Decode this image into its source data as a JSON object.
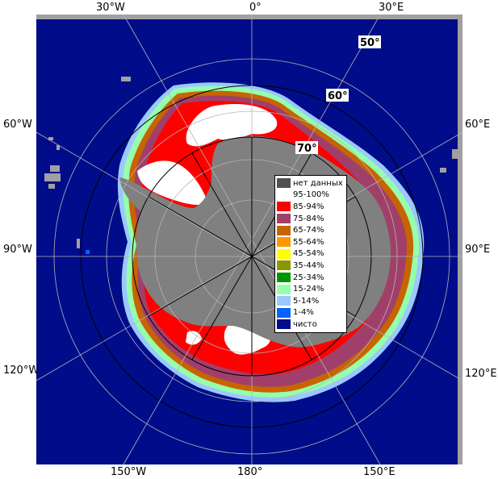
{
  "map": {
    "colors": {
      "ocean": "#000c8a",
      "land": "#808080",
      "frame_gray": "#a0a0a0",
      "grid": "#b4b4b4",
      "ice_95_100": "#ffffff",
      "ice_85_94": "#ff0000",
      "ice_75_84": "#a0406a",
      "ice_65_74": "#c86400",
      "ice_55_64": "#ff9600",
      "ice_45_54": "#ffff00",
      "ice_35_44": "#8c9600",
      "ice_25_34": "#009600",
      "ice_15_24": "#96ffaa",
      "ice_5_14": "#9ac8ff",
      "ice_1_4": "#0064ff"
    },
    "longitude_labels": {
      "lon_30w": "30°W",
      "lon_0": "0°",
      "lon_30e": "30°E",
      "lon_60w": "60°W",
      "lon_60e": "60°E",
      "lon_90w": "90°W",
      "lon_90e": "90°E",
      "lon_120w": "120°W",
      "lon_120e": "120°E",
      "lon_150w": "150°W",
      "lon_180": "180°",
      "lon_150e": "150°E"
    },
    "latitude_labels": {
      "lat_50": "50°",
      "lat_60": "60°",
      "lat_70": "70°"
    }
  },
  "legend": {
    "items": [
      {
        "label": "нет данных",
        "color": "#505050"
      },
      {
        "label": "95-100%",
        "color": "#ffffff"
      },
      {
        "label": "85-94%",
        "color": "#ff0000"
      },
      {
        "label": "75-84%",
        "color": "#a0406a"
      },
      {
        "label": "65-74%",
        "color": "#c86400"
      },
      {
        "label": "55-64%",
        "color": "#ff9600"
      },
      {
        "label": "45-54%",
        "color": "#ffff00"
      },
      {
        "label": "35-44%",
        "color": "#8c9600"
      },
      {
        "label": "25-34%",
        "color": "#009600"
      },
      {
        "label": "15-24%",
        "color": "#96ffaa"
      },
      {
        "label": "5-14%",
        "color": "#9ac8ff"
      },
      {
        "label": "1-4%",
        "color": "#0064ff"
      },
      {
        "label": "чисто",
        "color": "#000c8a"
      }
    ]
  }
}
